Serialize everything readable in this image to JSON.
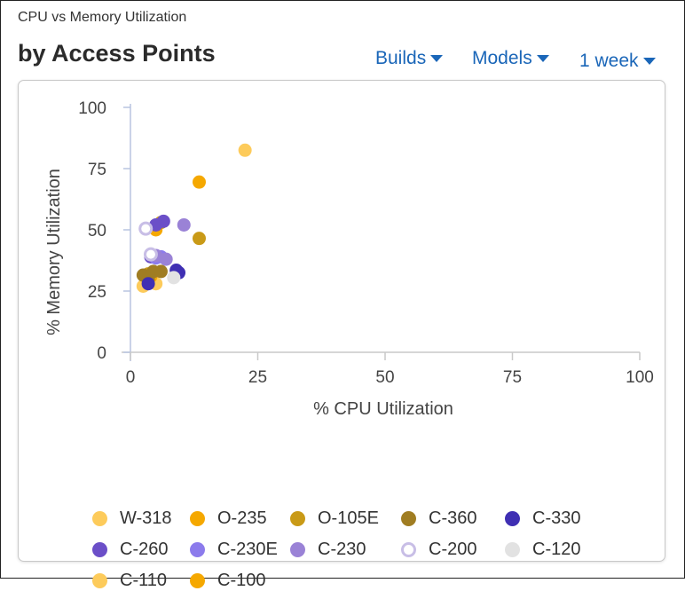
{
  "header": {
    "supertitle": "CPU vs Memory Utilization",
    "title": "by Access Points"
  },
  "filters": {
    "builds_label": "Builds",
    "models_label": "Models",
    "period_label": "1 week"
  },
  "chart_data": {
    "type": "scatter",
    "xlabel": "% CPU Utilization",
    "ylabel": "% Memory Utilization",
    "xlim": [
      0,
      100
    ],
    "ylim": [
      0,
      100
    ],
    "xticks": [
      "0",
      "25",
      "50",
      "75",
      "100"
    ],
    "yticks": [
      "0",
      "25",
      "50",
      "75",
      "100"
    ],
    "grid": false,
    "legend_position": "bottom",
    "series": [
      {
        "name": "W-318",
        "color": "#FDCB5B",
        "hollow": false,
        "points": [
          [
            22.5,
            82.5
          ],
          [
            5,
            28
          ],
          [
            2.5,
            27
          ]
        ]
      },
      {
        "name": "O-235",
        "color": "#F5A800",
        "hollow": false,
        "points": [
          [
            13.5,
            69.5
          ],
          [
            5,
            50
          ],
          [
            4,
            31
          ]
        ]
      },
      {
        "name": "O-105E",
        "color": "#C99A17",
        "hollow": false,
        "points": [
          [
            13.5,
            46.5
          ],
          [
            6,
            53
          ],
          [
            3.5,
            32
          ]
        ]
      },
      {
        "name": "C-360",
        "color": "#A07D22",
        "hollow": false,
        "points": [
          [
            2.5,
            31.5
          ],
          [
            4.5,
            33
          ],
          [
            6,
            33
          ],
          [
            3.5,
            30
          ]
        ]
      },
      {
        "name": "C-330",
        "color": "#3F2FB3",
        "hollow": false,
        "points": [
          [
            9,
            33.5
          ],
          [
            9.5,
            32.5
          ],
          [
            3.5,
            28
          ]
        ]
      },
      {
        "name": "C-260",
        "color": "#6B4FC8",
        "hollow": false,
        "points": [
          [
            6.5,
            53.5
          ],
          [
            5,
            52
          ],
          [
            4,
            39
          ]
        ]
      },
      {
        "name": "C-230E",
        "color": "#8C7BEC",
        "hollow": false,
        "points": [
          [
            6,
            39
          ],
          [
            5,
            38.5
          ]
        ]
      },
      {
        "name": "C-230",
        "color": "#9A82D6",
        "hollow": false,
        "points": [
          [
            10.5,
            52
          ],
          [
            7,
            38
          ],
          [
            5,
            39.5
          ]
        ]
      },
      {
        "name": "C-200",
        "color": "#C8BEE6",
        "hollow": true,
        "points": [
          [
            3,
            50.5
          ],
          [
            4,
            40
          ]
        ]
      },
      {
        "name": "C-120",
        "color": "#E2E2E2",
        "hollow": false,
        "points": [
          [
            8.5,
            30.5
          ]
        ]
      },
      {
        "name": "C-110",
        "color": "#FDCB5B",
        "hollow": false,
        "points": []
      },
      {
        "name": "C-100",
        "color": "#F5A800",
        "hollow": false,
        "points": []
      }
    ]
  }
}
